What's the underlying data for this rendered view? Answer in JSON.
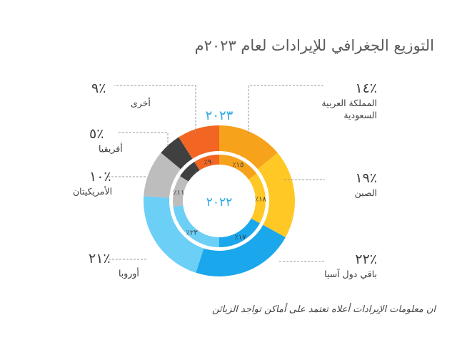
{
  "title": "التوزيع الجغرافي للإيرادات لعام ٢٠٢٣م",
  "footnote": "ان معلومات الإيرادات أعلاه تعتمد على أماكن تواجد الزبائن",
  "chart_data": {
    "type": "donut",
    "title": "التوزيع الجغرافي للإيرادات لعام ٢٠٢٣م",
    "rings": [
      {
        "name": "٢٠٢٣",
        "position": "outer",
        "slices": [
          {
            "label": "المملكة العربية السعودية",
            "value": 14,
            "display": "٪١٤",
            "color": "#F7A21B"
          },
          {
            "label": "الصين",
            "value": 19,
            "display": "٪١٩",
            "color": "#FFC825"
          },
          {
            "label": "باقي دول آسيا",
            "value": 22,
            "display": "٪٢٢",
            "color": "#1AA7EC"
          },
          {
            "label": "أوروبا",
            "value": 21,
            "display": "٪٢١",
            "color": "#6CCFF6"
          },
          {
            "label": "الأمريكيتان",
            "value": 10,
            "display": "٪١٠",
            "color": "#BDBDBD"
          },
          {
            "label": "أفريقيا",
            "value": 5,
            "display": "٪٥",
            "color": "#404040"
          },
          {
            "label": "أخرى",
            "value": 9,
            "display": "٪٩",
            "color": "#F26522"
          }
        ]
      },
      {
        "name": "٢٠٢٢",
        "position": "inner",
        "slices": [
          {
            "label": "المملكة العربية السعودية",
            "value": 15,
            "display": "٪١٥",
            "color": "#F7A21B"
          },
          {
            "label": "الصين",
            "value": 18,
            "display": "٪١٨",
            "color": "#FFC825"
          },
          {
            "label": "باقي دول آسيا",
            "value": 17,
            "display": "٪١٧",
            "color": "#1AA7EC"
          },
          {
            "label": "أوروبا",
            "value": 23,
            "display": "٪٢٣",
            "color": "#6CCFF6"
          },
          {
            "label": "الأمريكيتان",
            "value": 11,
            "display": "٪١١",
            "color": "#BDBDBD"
          },
          {
            "label": "أفريقيا",
            "value": 7,
            "display": "٪٧",
            "color": "#404040"
          },
          {
            "label": "أخرى",
            "value": 9,
            "display": "٪٩",
            "color": "#F26522"
          }
        ]
      }
    ],
    "leader_line_color": "#9a9a9a"
  }
}
